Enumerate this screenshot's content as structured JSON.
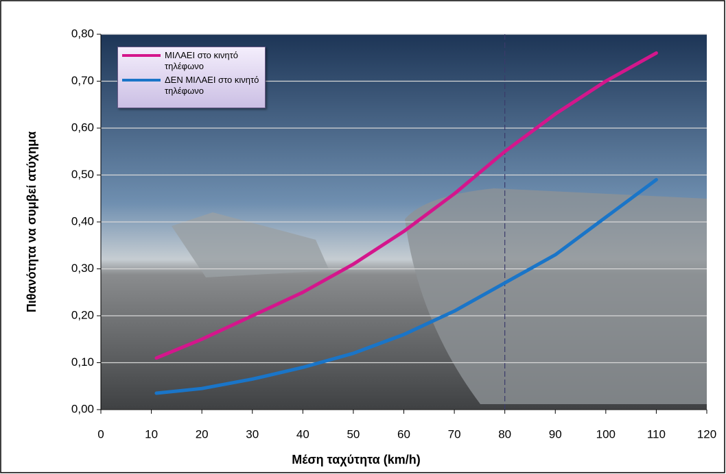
{
  "chart_data": {
    "type": "line",
    "x_label": "Μέση ταχύτητα (km/h)",
    "y_label": "Πιθανότητα να συμβεί ατύχημα",
    "x": [
      11,
      20,
      30,
      40,
      50,
      60,
      70,
      80,
      90,
      100,
      110
    ],
    "series": [
      {
        "name": "ΜΙΛΑΕΙ στο κινητό τηλέφωνο",
        "color": "#d4168c",
        "values": [
          0.11,
          0.15,
          0.2,
          0.25,
          0.31,
          0.38,
          0.46,
          0.55,
          0.63,
          0.7,
          0.76
        ]
      },
      {
        "name": "ΔΕΝ ΜΙΛΑΕΙ στο κινητό τηλέφωνο",
        "color": "#1a75c8",
        "values": [
          0.035,
          0.045,
          0.065,
          0.09,
          0.12,
          0.16,
          0.21,
          0.27,
          0.33,
          0.41,
          0.49
        ]
      }
    ],
    "xlim": [
      0,
      120
    ],
    "xticks": [
      0,
      10,
      20,
      30,
      40,
      50,
      60,
      70,
      80,
      90,
      100,
      110,
      120
    ],
    "ylim": [
      0,
      0.8
    ],
    "yticks": [
      {
        "value": 0,
        "label": "0,00"
      },
      {
        "value": 0.1,
        "label": "0,10"
      },
      {
        "value": 0.2,
        "label": "0,20"
      },
      {
        "value": 0.3,
        "label": "0,30"
      },
      {
        "value": 0.4,
        "label": "0,40"
      },
      {
        "value": 0.5,
        "label": "0,50"
      },
      {
        "value": 0.6,
        "label": "0,60"
      },
      {
        "value": 0.7,
        "label": "0,70"
      },
      {
        "value": 0.8,
        "label": "0,80"
      }
    ],
    "vline": 80,
    "grid": true,
    "legend": "upper-left"
  }
}
